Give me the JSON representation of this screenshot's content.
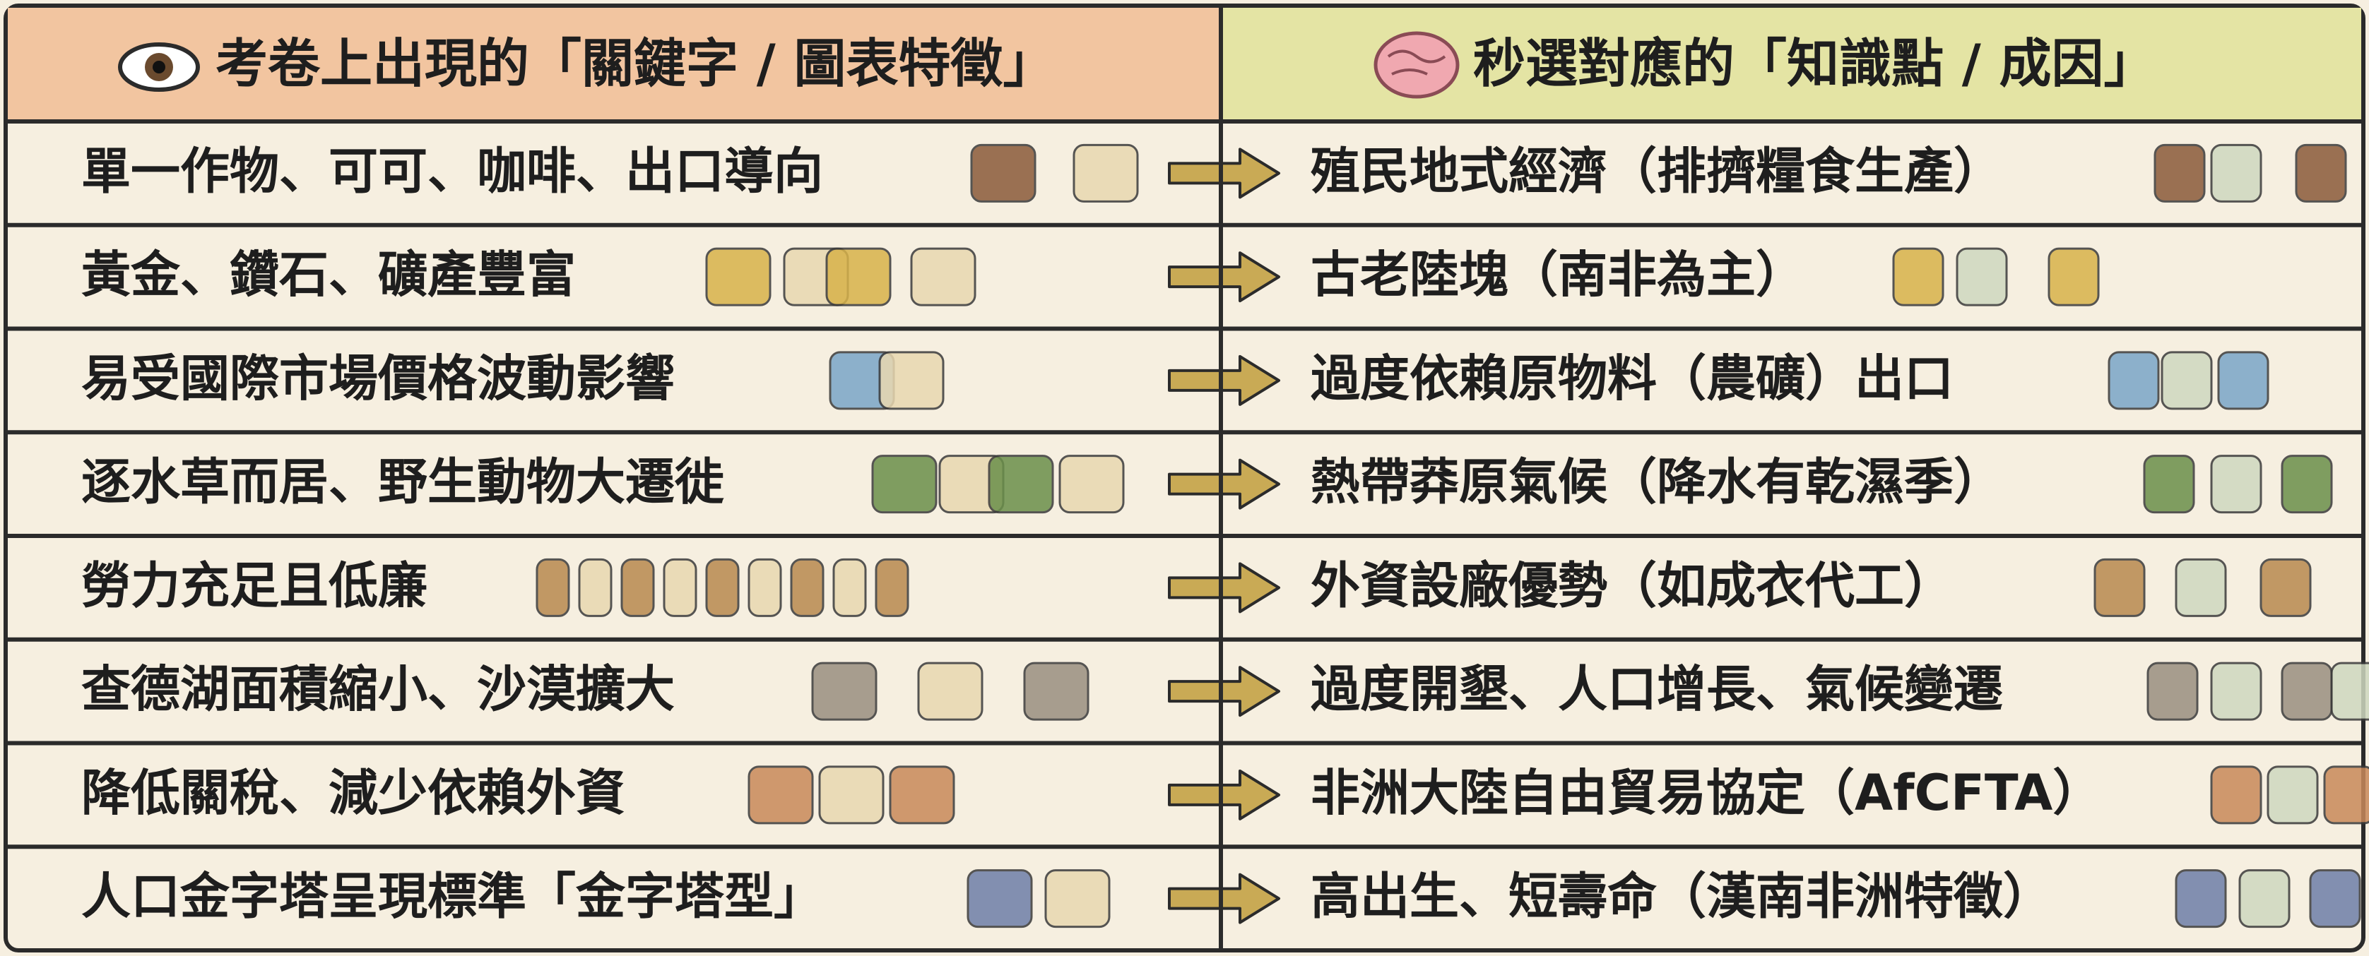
{
  "header": {
    "left": "考卷上出現的「關鍵字 / 圖表特徵」",
    "right": "秒選對應的「知識點 / 成因」"
  },
  "rows": [
    {
      "left": "單一作物、可可、咖啡、出口導向",
      "right": "殖民地式經濟（排擠糧食生產）"
    },
    {
      "left": "黃金、鑽石、礦產豐富",
      "right": "古老陸塊（南非為主）"
    },
    {
      "left": "易受國際市場價格波動影響",
      "right": "過度依賴原物料（農礦）出口"
    },
    {
      "left": "逐水草而居、野生動物大遷徙",
      "right": "熱帶莽原氣候（降水有乾濕季）"
    },
    {
      "left": "勞力充足且低廉",
      "right": "外資設廠優勢（如成衣代工）"
    },
    {
      "left": "查德湖面積縮小、沙漠擴大",
      "right": "過度開墾、人口增長、氣候變遷"
    },
    {
      "left": "降低關稅、減少依賴外資",
      "right": "非洲大陸自由貿易協定（AfCFTA）"
    },
    {
      "left": "人口金字塔呈現標準「金字塔型」",
      "right": "高出生、短壽命（漢南非洲特徵）"
    }
  ]
}
